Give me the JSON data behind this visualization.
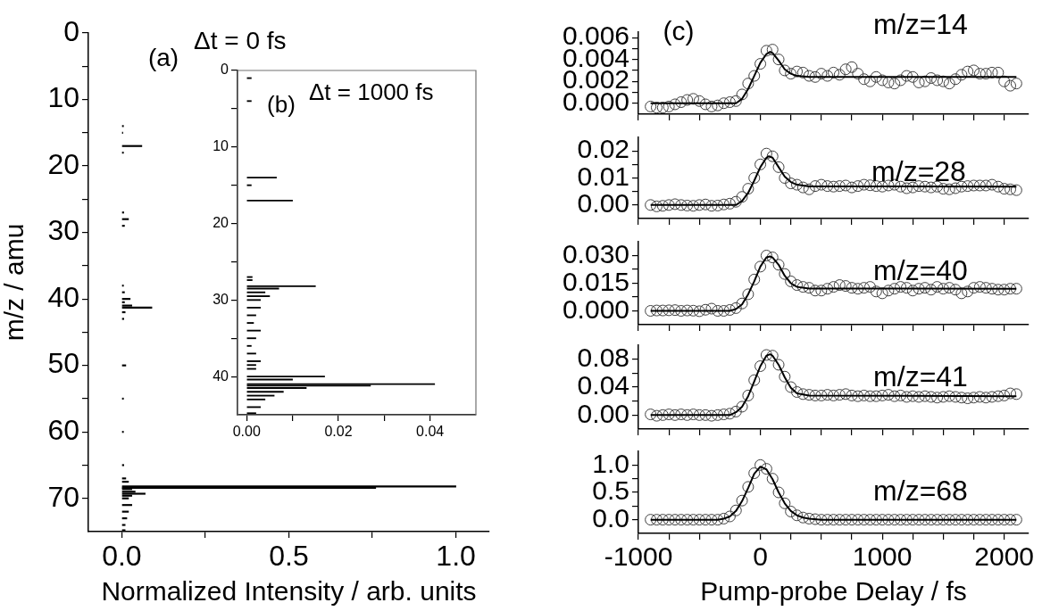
{
  "chart_data": [
    {
      "type": "bar",
      "orientation": "horizontal",
      "color": "#000000",
      "x": [
        14,
        15,
        17,
        18,
        27,
        28,
        29,
        38,
        39,
        40,
        40.5,
        41,
        41.3,
        42,
        43,
        50,
        55,
        60,
        65,
        67,
        67.5,
        68.2,
        68.4,
        68.6,
        69,
        69.3,
        69.6,
        70,
        71,
        72,
        73,
        74,
        74.8
      ],
      "values": [
        0.005,
        0.003,
        0.06,
        0.005,
        0.006,
        0.02,
        0.008,
        0.005,
        0.008,
        0.025,
        0.008,
        0.03,
        0.09,
        0.01,
        0.006,
        0.012,
        0.005,
        0.005,
        0.006,
        0.012,
        0.02,
        1.0,
        0.76,
        0.03,
        0.04,
        0.07,
        0.03,
        0.02,
        0.03,
        0.02,
        0.015,
        0.01,
        0.01
      ],
      "xlim": [
        -0.1,
        1.1
      ],
      "xticks": [
        {
          "value": 0,
          "label": "0.0"
        },
        {
          "value": 0.25,
          "label": null
        },
        {
          "value": 0.5,
          "label": "0.5"
        },
        {
          "value": 0.75,
          "label": null
        },
        {
          "value": 1,
          "label": "1.0"
        }
      ],
      "ylim": [
        75,
        0
      ],
      "yticks": [
        0,
        {
          "value": 5,
          "label": null
        },
        10,
        {
          "value": 15,
          "label": null
        },
        20,
        {
          "value": 25,
          "label": null
        },
        30,
        {
          "value": 35,
          "label": null
        },
        40,
        {
          "value": 45,
          "label": null
        },
        50,
        {
          "value": 55,
          "label": null
        },
        60,
        {
          "value": 65,
          "label": null
        },
        70
      ],
      "xlabel": "Normalized Intensity / arb. units",
      "ylabel": "m/z / amu",
      "annotations": [
        "(a)",
        "Δt = 0 fs"
      ]
    },
    {
      "type": "bar",
      "orientation": "horizontal",
      "color": "#000000",
      "x": [
        1,
        4,
        14,
        15,
        17,
        27,
        27.4,
        28.2,
        28.5,
        29,
        29.5,
        30,
        31,
        32,
        33,
        34,
        35,
        36,
        37,
        38,
        38.5,
        39,
        40,
        40.4,
        41,
        41.2,
        41.5,
        42,
        42.5,
        43,
        44,
        44.8
      ],
      "values": [
        0.001,
        0.001,
        0.0065,
        0.001,
        0.01,
        0.0012,
        0.0012,
        0.015,
        0.007,
        0.004,
        0.005,
        0.003,
        0.003,
        0.002,
        0.0015,
        0.003,
        0.002,
        0.001,
        0.002,
        0.003,
        0.002,
        0.002,
        0.017,
        0.01,
        0.041,
        0.027,
        0.013,
        0.008,
        0.006,
        0.004,
        0.003,
        0.002
      ],
      "xlim": [
        -0.002,
        0.05
      ],
      "xticks": [
        {
          "value": 0,
          "label": "0.00"
        },
        {
          "value": 0.01,
          "label": null
        },
        {
          "value": 0.02,
          "label": "0.02"
        },
        {
          "value": 0.03,
          "label": null
        },
        {
          "value": 0.04,
          "label": "0.04"
        }
      ],
      "ylim": [
        45,
        0
      ],
      "yticks": [
        0,
        {
          "value": 5,
          "label": null
        },
        10,
        {
          "value": 15,
          "label": null
        },
        20,
        {
          "value": 25,
          "label": null
        },
        30,
        {
          "value": 35,
          "label": null
        },
        40
      ],
      "annotations": [
        "(b)",
        "Δt = 1000 fs"
      ]
    },
    {
      "type": "scatter",
      "title": "m/z=14",
      "tick_labels": "y",
      "annotations": [
        "(c)"
      ],
      "xlim": [
        -1000,
        2200
      ],
      "xticks": [
        -1000,
        {
          "value": -750,
          "label": null
        },
        {
          "value": -500,
          "label": null
        },
        {
          "value": -250,
          "label": null
        },
        0,
        {
          "value": 250,
          "label": null
        },
        {
          "value": 500,
          "label": null
        },
        {
          "value": 750,
          "label": null
        },
        1000,
        {
          "value": 1250,
          "label": null
        },
        {
          "value": 1500,
          "label": null
        },
        {
          "value": 1750,
          "label": null
        },
        2000
      ],
      "ylim": [
        -0.001,
        0.0065
      ],
      "yticks": [
        {
          "value": 0,
          "label": "0.000"
        },
        {
          "value": 0.001,
          "label": null
        },
        {
          "value": 0.002,
          "label": "0.002"
        },
        {
          "value": 0.003,
          "label": null
        },
        {
          "value": 0.004,
          "label": "0.004"
        },
        {
          "value": 0.005,
          "label": null
        },
        {
          "value": 0.006,
          "label": "0.006"
        }
      ],
      "series": [
        {
          "type": "scatter",
          "marker": "circle",
          "color": "#404040",
          "x": [
            -900,
            -850,
            -800,
            -750,
            -700,
            -650,
            -600,
            -550,
            -500,
            -450,
            -400,
            -350,
            -300,
            -250,
            -200,
            -150,
            -100,
            -50,
            0,
            50,
            100,
            150,
            200,
            250,
            300,
            350,
            400,
            450,
            500,
            550,
            600,
            650,
            700,
            750,
            800,
            850,
            900,
            950,
            1000,
            1050,
            1100,
            1150,
            1200,
            1250,
            1300,
            1350,
            1400,
            1450,
            1500,
            1550,
            1600,
            1650,
            1700,
            1750,
            1800,
            1850,
            1900,
            1950,
            2000,
            2050,
            2100
          ],
          "values": [
            -0.0003,
            -0.0004,
            -0.0004,
            -0.0003,
            -0.0001,
            0.0001,
            0.0003,
            0.0004,
            0.0002,
            -0.0001,
            -0.0003,
            -0.0002,
            0,
            0.0001,
            0.0002,
            0.0008,
            0.0018,
            0.0025,
            0.0036,
            0.0048,
            0.0049,
            0.004,
            0.003,
            0.0027,
            0.0029,
            0.0028,
            0.0025,
            0.0024,
            0.0027,
            0.0025,
            0.0028,
            0.0026,
            0.0031,
            0.0033,
            0.0027,
            0.0022,
            0.002,
            0.0024,
            0.0021,
            0.0019,
            0.0018,
            0.0021,
            0.0025,
            0.0024,
            0.0019,
            0.002,
            0.0023,
            0.0021,
            0.002,
            0.0018,
            0.0022,
            0.0026,
            0.0029,
            0.003,
            0.0027,
            0.0027,
            0.0028,
            0.0028,
            0.002,
            0.0016,
            0.0018
          ]
        },
        {
          "type": "line",
          "marker": "none",
          "color": "#000000",
          "x": [
            -900,
            -200,
            -150,
            -100,
            -50,
            0,
            50,
            80,
            100,
            150,
            200,
            250,
            300,
            400,
            2100
          ],
          "values": [
            0,
            0,
            0.0004,
            0.0013,
            0.0025,
            0.0037,
            0.0045,
            0.0047,
            0.0046,
            0.0039,
            0.0031,
            0.0027,
            0.0025,
            0.0024,
            0.0024
          ]
        }
      ]
    },
    {
      "type": "scatter",
      "title": "m/z=28",
      "tick_labels": "y",
      "xlim": [
        -1000,
        2200
      ],
      "xticks": [
        -1000,
        {
          "value": -750,
          "label": null
        },
        {
          "value": -500,
          "label": null
        },
        {
          "value": -250,
          "label": null
        },
        0,
        {
          "value": 250,
          "label": null
        },
        {
          "value": 500,
          "label": null
        },
        {
          "value": 750,
          "label": null
        },
        1000,
        {
          "value": 1250,
          "label": null
        },
        {
          "value": 1500,
          "label": null
        },
        {
          "value": 1750,
          "label": null
        },
        2000
      ],
      "ylim": [
        -0.005,
        0.025
      ],
      "yticks": [
        {
          "value": 0,
          "label": "0.00"
        },
        {
          "value": 0.005,
          "label": null
        },
        {
          "value": 0.01,
          "label": "0.01"
        },
        {
          "value": 0.015,
          "label": null
        },
        {
          "value": 0.02,
          "label": "0.02"
        }
      ],
      "series": [
        {
          "type": "scatter",
          "marker": "circle",
          "color": "#404040",
          "x": [
            -900,
            -850,
            -800,
            -750,
            -700,
            -650,
            -600,
            -550,
            -500,
            -450,
            -400,
            -350,
            -300,
            -250,
            -200,
            -150,
            -100,
            -50,
            0,
            50,
            100,
            150,
            200,
            250,
            300,
            350,
            400,
            450,
            500,
            550,
            600,
            650,
            700,
            750,
            800,
            850,
            900,
            950,
            1000,
            1050,
            1100,
            1150,
            1200,
            1250,
            1300,
            1350,
            1400,
            1450,
            1500,
            1550,
            1600,
            1650,
            1700,
            1750,
            1800,
            1850,
            1900,
            1950,
            2000,
            2050,
            2100
          ],
          "values": [
            0,
            -0.0005,
            -0.0003,
            0,
            0.0003,
            0,
            -0.0002,
            -0.0003,
            0,
            0.0002,
            -0.0003,
            -0.0002,
            0.0002,
            0.0005,
            0.0012,
            0.003,
            0.006,
            0.01,
            0.015,
            0.019,
            0.018,
            0.014,
            0.01,
            0.008,
            0.0075,
            0.0065,
            0.0058,
            0.007,
            0.0075,
            0.007,
            0.0068,
            0.007,
            0.0072,
            0.0065,
            0.007,
            0.0075,
            0.0073,
            0.007,
            0.0068,
            0.0072,
            0.0075,
            0.0068,
            0.0062,
            0.0065,
            0.007,
            0.0068,
            0.0065,
            0.0068,
            0.006,
            0.0058,
            0.0062,
            0.0068,
            0.007,
            0.0072,
            0.0072,
            0.0072,
            0.0075,
            0.0068,
            0.006,
            0.0058,
            0.0055
          ]
        },
        {
          "type": "line",
          "marker": "none",
          "color": "#000000",
          "x": [
            -900,
            -200,
            -150,
            -100,
            -50,
            0,
            50,
            70,
            100,
            150,
            200,
            250,
            300,
            400,
            2100
          ],
          "values": [
            0,
            0,
            0.0015,
            0.0045,
            0.009,
            0.014,
            0.0175,
            0.018,
            0.0175,
            0.014,
            0.0105,
            0.0085,
            0.0075,
            0.0069,
            0.0068
          ]
        }
      ]
    },
    {
      "type": "scatter",
      "title": "m/z=40",
      "tick_labels": "y",
      "xlim": [
        -1000,
        2200
      ],
      "xticks": [
        -1000,
        {
          "value": -750,
          "label": null
        },
        {
          "value": -500,
          "label": null
        },
        {
          "value": -250,
          "label": null
        },
        0,
        {
          "value": 250,
          "label": null
        },
        {
          "value": 500,
          "label": null
        },
        {
          "value": 750,
          "label": null
        },
        1000,
        {
          "value": 1250,
          "label": null
        },
        {
          "value": 1500,
          "label": null
        },
        {
          "value": 1750,
          "label": null
        },
        2000
      ],
      "ylim": [
        -0.0075,
        0.0375
      ],
      "yticks": [
        {
          "value": 0,
          "label": "0.000"
        },
        {
          "value": 0.0075,
          "label": null
        },
        {
          "value": 0.015,
          "label": "0.015"
        },
        {
          "value": 0.0225,
          "label": null
        },
        {
          "value": 0.03,
          "label": "0.030"
        }
      ],
      "series": [
        {
          "type": "scatter",
          "marker": "circle",
          "color": "#404040",
          "x": [
            -900,
            -850,
            -800,
            -750,
            -700,
            -650,
            -600,
            -550,
            -500,
            -450,
            -400,
            -350,
            -300,
            -250,
            -200,
            -150,
            -100,
            -50,
            0,
            50,
            100,
            150,
            200,
            250,
            300,
            350,
            400,
            450,
            500,
            550,
            600,
            650,
            700,
            750,
            800,
            850,
            900,
            950,
            1000,
            1050,
            1100,
            1150,
            1200,
            1250,
            1300,
            1350,
            1400,
            1450,
            1500,
            1550,
            1600,
            1650,
            1700,
            1750,
            1800,
            1850,
            1900,
            1950,
            2000,
            2050,
            2100
          ],
          "values": [
            0,
            0.0002,
            0.0002,
            0.0003,
            0.0004,
            0,
            0.0002,
            0.0001,
            -0.0002,
            0.0006,
            0.0012,
            0,
            0,
            0.0005,
            0.0015,
            0.004,
            0.009,
            0.017,
            0.024,
            0.03,
            0.029,
            0.025,
            0.02,
            0.016,
            0.014,
            0.013,
            0.0125,
            0.011,
            0.011,
            0.012,
            0.013,
            0.014,
            0.0135,
            0.0125,
            0.012,
            0.0125,
            0.013,
            0.0105,
            0.0095,
            0.011,
            0.012,
            0.013,
            0.0125,
            0.011,
            0.012,
            0.0125,
            0.0115,
            0.013,
            0.012,
            0.0125,
            0.0115,
            0.0095,
            0.0105,
            0.0125,
            0.013,
            0.0125,
            0.012,
            0.0115,
            0.0115,
            0.012,
            0.012
          ]
        },
        {
          "type": "line",
          "marker": "none",
          "color": "#000000",
          "x": [
            -900,
            -250,
            -200,
            -150,
            -100,
            -50,
            0,
            50,
            80,
            100,
            150,
            200,
            250,
            300,
            400,
            2100
          ],
          "values": [
            0,
            0,
            0.001,
            0.0035,
            0.009,
            0.016,
            0.024,
            0.029,
            0.0295,
            0.029,
            0.025,
            0.019,
            0.015,
            0.013,
            0.0121,
            0.012
          ]
        }
      ]
    },
    {
      "type": "scatter",
      "title": "m/z=41",
      "tick_labels": "y",
      "xlim": [
        -1000,
        2200
      ],
      "xticks": [
        -1000,
        {
          "value": -750,
          "label": null
        },
        {
          "value": -500,
          "label": null
        },
        {
          "value": -250,
          "label": null
        },
        0,
        {
          "value": 250,
          "label": null
        },
        {
          "value": 500,
          "label": null
        },
        {
          "value": 750,
          "label": null
        },
        1000,
        {
          "value": 1250,
          "label": null
        },
        {
          "value": 1500,
          "label": null
        },
        {
          "value": 1750,
          "label": null
        },
        2000
      ],
      "ylim": [
        -0.02,
        0.1
      ],
      "yticks": [
        {
          "value": 0,
          "label": "0.00"
        },
        {
          "value": 0.02,
          "label": null
        },
        {
          "value": 0.04,
          "label": "0.04"
        },
        {
          "value": 0.06,
          "label": null
        },
        {
          "value": 0.08,
          "label": "0.08"
        }
      ],
      "series": [
        {
          "type": "scatter",
          "marker": "circle",
          "color": "#404040",
          "x": [
            -900,
            -850,
            -800,
            -750,
            -700,
            -650,
            -600,
            -550,
            -500,
            -450,
            -400,
            -350,
            -300,
            -250,
            -200,
            -150,
            -100,
            -50,
            0,
            50,
            100,
            150,
            200,
            250,
            300,
            350,
            400,
            450,
            500,
            550,
            600,
            650,
            700,
            750,
            800,
            850,
            900,
            950,
            1000,
            1050,
            1100,
            1150,
            1200,
            1250,
            1300,
            1350,
            1400,
            1450,
            1500,
            1550,
            1600,
            1650,
            1700,
            1750,
            1800,
            1850,
            1900,
            1950,
            2000,
            2050,
            2100
          ],
          "values": [
            0.001,
            -0.001,
            0,
            0.001,
            0,
            0.001,
            0,
            0.001,
            0,
            0,
            -0.001,
            0,
            0.001,
            0.002,
            0.005,
            0.012,
            0.028,
            0.05,
            0.07,
            0.086,
            0.085,
            0.072,
            0.055,
            0.04,
            0.033,
            0.03,
            0.029,
            0.028,
            0.028,
            0.029,
            0.028,
            0.029,
            0.03,
            0.028,
            0.027,
            0.028,
            0.027,
            0.027,
            0.028,
            0.029,
            0.027,
            0.028,
            0.026,
            0.027,
            0.026,
            0.027,
            0.026,
            0.025,
            0.026,
            0.027,
            0.026,
            0.025,
            0.024,
            0.025,
            0.026,
            0.025,
            0.026,
            0.027,
            0.028,
            0.031,
            0.03
          ]
        },
        {
          "type": "line",
          "marker": "none",
          "color": "#000000",
          "x": [
            -900,
            -250,
            -200,
            -150,
            -100,
            -50,
            0,
            50,
            80,
            100,
            150,
            200,
            250,
            300,
            400,
            2100
          ],
          "values": [
            0,
            0,
            0.004,
            0.012,
            0.027,
            0.048,
            0.07,
            0.085,
            0.087,
            0.085,
            0.072,
            0.054,
            0.039,
            0.031,
            0.028,
            0.027
          ]
        }
      ]
    },
    {
      "type": "scatter",
      "title": "m/z=68",
      "xlabel": "Pump-probe Delay / fs",
      "xlim": [
        -1000,
        2200
      ],
      "xticks": [
        -1000,
        {
          "value": -750,
          "label": null
        },
        {
          "value": -500,
          "label": null
        },
        {
          "value": -250,
          "label": null
        },
        0,
        {
          "value": 250,
          "label": null
        },
        {
          "value": 500,
          "label": null
        },
        {
          "value": 750,
          "label": null
        },
        1000,
        {
          "value": 1250,
          "label": null
        },
        {
          "value": 1500,
          "label": null
        },
        {
          "value": 1750,
          "label": null
        },
        2000
      ],
      "ylim": [
        -0.25,
        1.25
      ],
      "yticks": [
        {
          "value": 0,
          "label": "0.0"
        },
        {
          "value": 0.25,
          "label": null
        },
        {
          "value": 0.5,
          "label": "0.5"
        },
        {
          "value": 0.75,
          "label": null
        },
        {
          "value": 1,
          "label": "1.0"
        }
      ],
      "series": [
        {
          "type": "scatter",
          "marker": "circle",
          "color": "#404040",
          "x": [
            -900,
            -850,
            -800,
            -750,
            -700,
            -650,
            -600,
            -550,
            -500,
            -450,
            -400,
            -350,
            -300,
            -250,
            -200,
            -150,
            -100,
            -50,
            0,
            50,
            100,
            150,
            200,
            250,
            300,
            350,
            400,
            450,
            500,
            550,
            600,
            650,
            700,
            750,
            800,
            850,
            900,
            950,
            1000,
            1050,
            1100,
            1150,
            1200,
            1250,
            1300,
            1350,
            1400,
            1450,
            1500,
            1550,
            1600,
            1650,
            1700,
            1750,
            1800,
            1850,
            1900,
            1950,
            2000,
            2050,
            2100
          ],
          "values": [
            0,
            0,
            0,
            0,
            0,
            0,
            0,
            0,
            0,
            0,
            0,
            0,
            0.02,
            0.06,
            0.17,
            0.35,
            0.6,
            0.85,
            1,
            0.93,
            0.75,
            0.5,
            0.3,
            0.15,
            0.08,
            0.04,
            0.02,
            0.01,
            0,
            0,
            0,
            0,
            0,
            0,
            0,
            0,
            0,
            0,
            0,
            0,
            0,
            0,
            0,
            0,
            0,
            0,
            0,
            0,
            0,
            0,
            0,
            0,
            0,
            0,
            0,
            0,
            0,
            0,
            0,
            0,
            0
          ]
        },
        {
          "type": "line",
          "marker": "none",
          "color": "#000000",
          "x": [
            -900,
            -350,
            -300,
            -250,
            -200,
            -150,
            -100,
            -50,
            0,
            50,
            100,
            150,
            200,
            250,
            300,
            350,
            400,
            500,
            2100
          ],
          "values": [
            0,
            0,
            0.02,
            0.06,
            0.16,
            0.34,
            0.58,
            0.84,
            0.97,
            0.92,
            0.74,
            0.5,
            0.3,
            0.16,
            0.08,
            0.04,
            0.02,
            0,
            0
          ]
        }
      ]
    }
  ]
}
